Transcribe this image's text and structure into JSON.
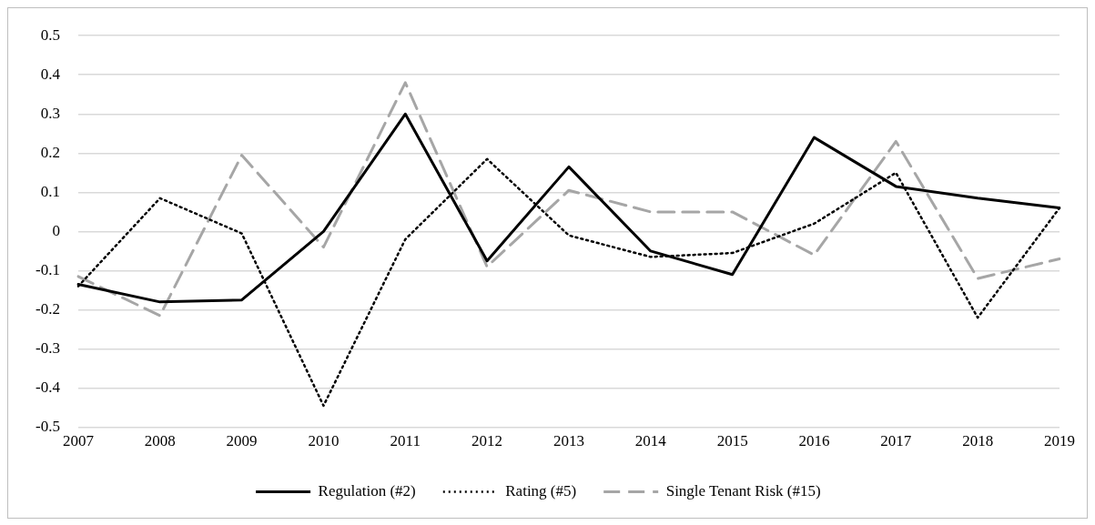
{
  "chart_data": {
    "type": "line",
    "categories": [
      "2007",
      "2008",
      "2009",
      "2010",
      "2011",
      "2012",
      "2013",
      "2014",
      "2015",
      "2016",
      "2017",
      "2018",
      "2019"
    ],
    "series": [
      {
        "name": "Regulation (#2)",
        "color": "#000000",
        "line_style": "solid",
        "values": [
          -0.135,
          -0.18,
          -0.175,
          0.0,
          0.3,
          -0.075,
          0.165,
          -0.05,
          -0.11,
          0.24,
          0.115,
          0.085,
          0.06
        ]
      },
      {
        "name": "Rating (#5)",
        "color": "#000000",
        "line_style": "dotted",
        "values": [
          -0.14,
          0.085,
          -0.005,
          -0.445,
          -0.02,
          0.185,
          -0.01,
          -0.065,
          -0.055,
          0.02,
          0.15,
          -0.22,
          0.06
        ]
      },
      {
        "name": "Single Tenant Risk (#15)",
        "color": "#a6a6a6",
        "line_style": "dashed",
        "values": [
          -0.115,
          -0.215,
          0.195,
          -0.04,
          0.38,
          -0.09,
          0.105,
          0.05,
          0.05,
          -0.06,
          0.23,
          -0.12,
          -0.07
        ]
      }
    ],
    "ylim": [
      -0.5,
      0.5
    ],
    "yticks": [
      -0.5,
      -0.4,
      -0.3,
      -0.2,
      -0.1,
      0,
      0.1,
      0.2,
      0.3,
      0.4,
      0.5
    ],
    "grid": "y",
    "legend": "bottom",
    "marker": "none"
  }
}
